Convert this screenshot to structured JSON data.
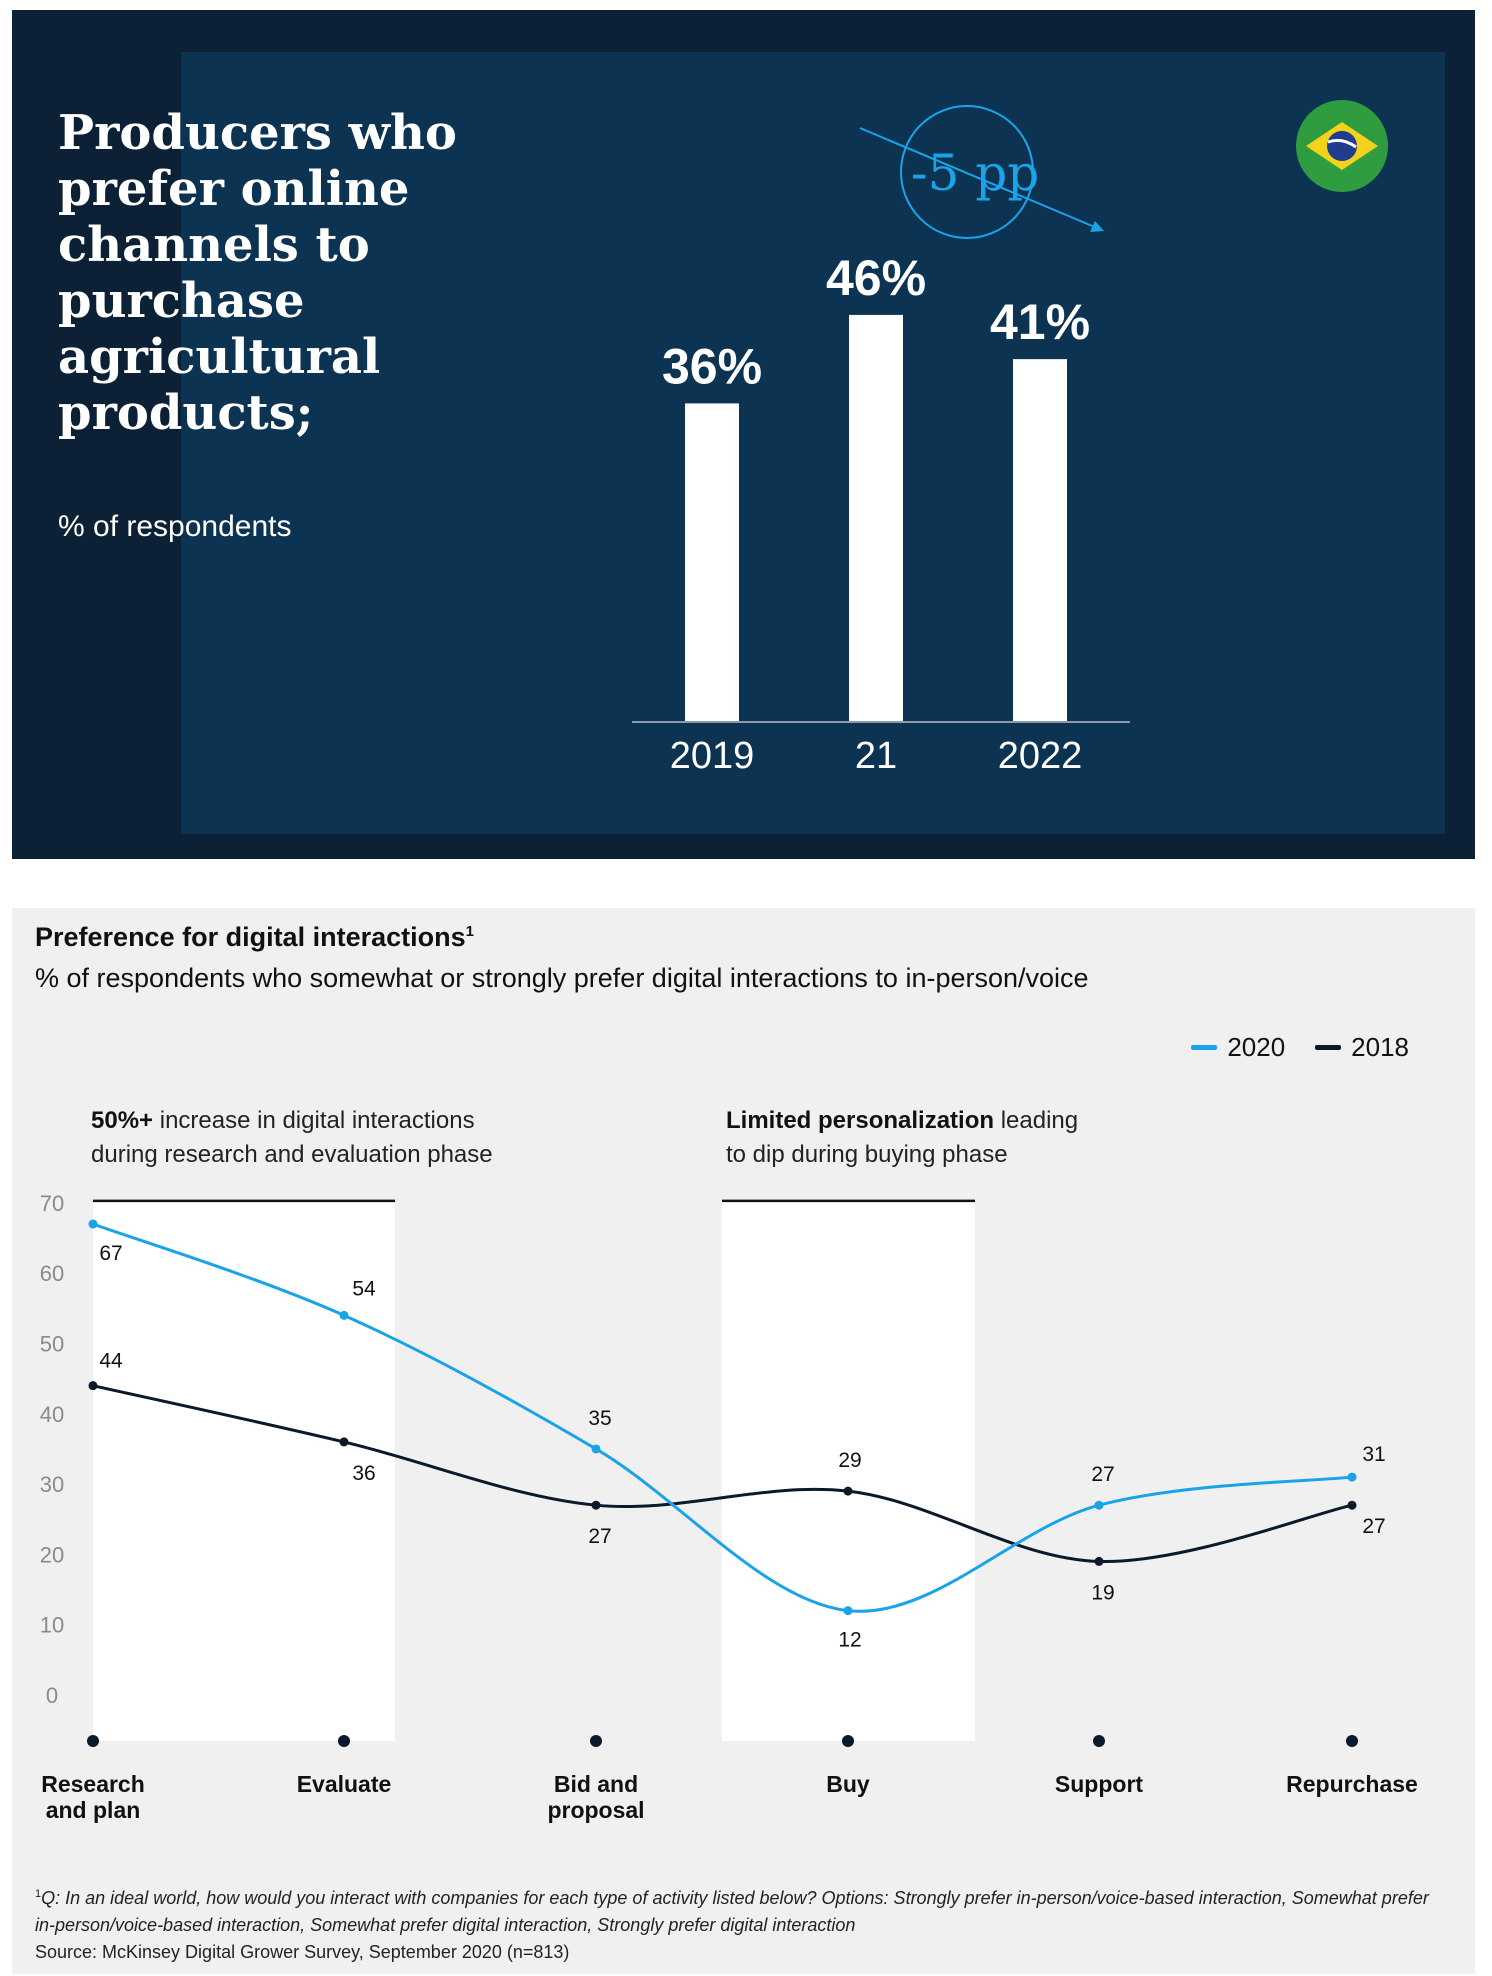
{
  "top_chart": {
    "title": "Producers who prefer online channels to purchase agricultural products;",
    "subtitle": "% of respondents",
    "change_annotation": "-5 pp",
    "flag_icon": "brazil-flag-icon",
    "colors": {
      "background": "#0c2135",
      "panel": "#0c3452",
      "bar": "#ffffff",
      "accent": "#1aa3e8"
    },
    "chart_data": {
      "type": "bar",
      "categories": [
        "2019",
        "21",
        "2022"
      ],
      "values": [
        36,
        46,
        41
      ],
      "value_labels": [
        "36%",
        "46%",
        "41%"
      ],
      "title": "Producers who prefer online channels to purchase agricultural products;",
      "ylabel": "% of respondents",
      "ylim": [
        0,
        100
      ],
      "grid": false
    }
  },
  "bottom_chart": {
    "title": "Preference for digital interactions",
    "title_footnote_marker": "1",
    "subtitle": "% of respondents who somewhat or strongly prefer digital interactions to in-person/voice",
    "legend": [
      {
        "label": "2020",
        "color": "#1aa3e8"
      },
      {
        "label": "2018",
        "color": "#0b1a2b"
      }
    ],
    "callouts": [
      {
        "bold": "50%+",
        "rest": " increase in digital interactions",
        "line2": "during research and evaluation phase"
      },
      {
        "bold": "Limited personalization",
        "rest": " leading",
        "line2": "to dip during buying phase"
      }
    ],
    "chart_data": {
      "type": "line",
      "categories": [
        "Research and plan",
        "Evaluate",
        "Bid and proposal",
        "Buy",
        "Support",
        "Repurchase"
      ],
      "category_lines": [
        [
          "Research",
          "and plan"
        ],
        [
          "Evaluate"
        ],
        [
          "Bid and",
          "proposal"
        ],
        [
          "Buy"
        ],
        [
          "Support"
        ],
        [
          "Repurchase"
        ]
      ],
      "series": [
        {
          "name": "2020",
          "values": [
            67,
            54,
            35,
            12,
            27,
            31
          ],
          "color": "#1aa3e8"
        },
        {
          "name": "2018",
          "values": [
            44,
            36,
            27,
            29,
            19,
            27
          ],
          "color": "#0b1a2b"
        }
      ],
      "yticks": [
        0,
        10,
        20,
        30,
        40,
        50,
        60,
        70
      ],
      "ylim": [
        0,
        70
      ],
      "highlight_ranges": [
        [
          0,
          1
        ],
        [
          3,
          3
        ]
      ],
      "legend_position": "top-right",
      "grid": false
    },
    "footnote": {
      "marker": "1",
      "question": "Q: In an ideal world, how would you interact with companies for each type of activity listed below? Options: Strongly prefer in-person/voice-based interaction, Somewhat prefer in-person/voice-based interaction, Somewhat prefer digital interaction, Strongly prefer digital interaction",
      "source": "Source: McKinsey Digital Grower Survey, September 2020 (n=813)"
    }
  }
}
